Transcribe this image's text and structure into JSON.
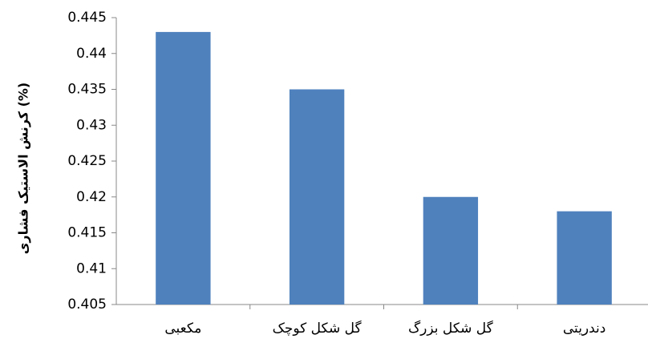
{
  "chart_data": {
    "type": "bar",
    "y_label": "کرنش الاستیک فشاری (%)",
    "categories": [
      "مکعبی",
      "گل شکل کوچک",
      "گل شکل بزرگ",
      "دندریتی"
    ],
    "values": [
      0.443,
      0.435,
      0.42,
      0.418
    ],
    "color": "#4f81bd",
    "ylim": [
      0.405,
      0.445
    ],
    "yticks": [
      0.405,
      0.41,
      0.415,
      0.42,
      0.425,
      0.43,
      0.435,
      0.44,
      0.445
    ],
    "grid": false
  }
}
